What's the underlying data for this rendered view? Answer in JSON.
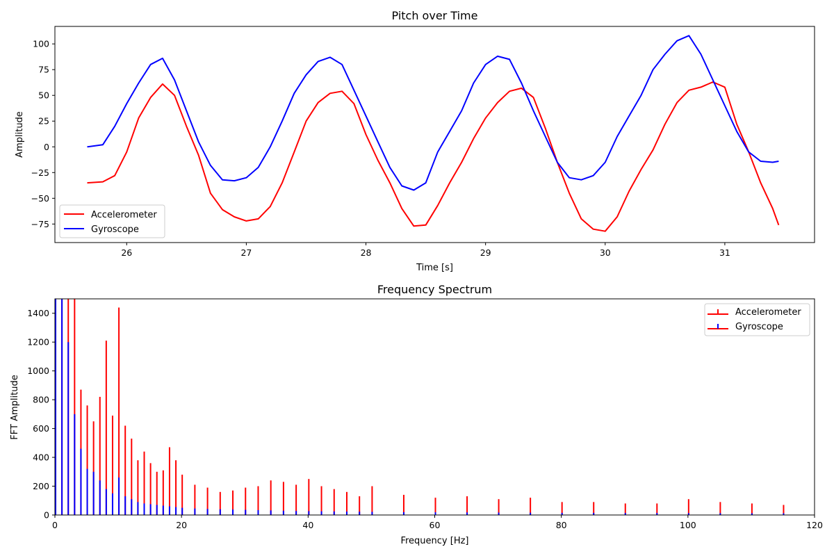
{
  "chart_data": [
    {
      "type": "line",
      "title": "Pitch over Time",
      "xlabel": "Time [s]",
      "ylabel": "Amplitude",
      "xlim": [
        25.4,
        31.75
      ],
      "ylim": [
        -93,
        117
      ],
      "xticks": [
        26,
        27,
        28,
        29,
        30,
        31
      ],
      "xtick_labels": [
        "26",
        "27",
        "28",
        "29",
        "30",
        "31"
      ],
      "yticks": [
        100,
        75,
        50,
        25,
        0,
        -25,
        -50,
        -75
      ],
      "ytick_labels": [
        "100",
        "75",
        "50",
        "25",
        "0",
        "−25",
        "−50",
        "−75"
      ],
      "legend_position": "lower-left",
      "grid": false,
      "series": [
        {
          "name": "Accelerometer",
          "color": "#ff0000",
          "x": [
            25.67,
            25.8,
            25.9,
            26.0,
            26.1,
            26.2,
            26.3,
            26.4,
            26.5,
            26.6,
            26.7,
            26.8,
            26.9,
            27.0,
            27.1,
            27.2,
            27.3,
            27.4,
            27.5,
            27.6,
            27.7,
            27.8,
            27.9,
            28.0,
            28.1,
            28.2,
            28.3,
            28.4,
            28.5,
            28.6,
            28.7,
            28.8,
            28.9,
            29.0,
            29.1,
            29.2,
            29.3,
            29.4,
            29.5,
            29.6,
            29.7,
            29.8,
            29.9,
            30.0,
            30.1,
            30.2,
            30.3,
            30.4,
            30.5,
            30.6,
            30.7,
            30.8,
            30.9,
            31.0,
            31.1,
            31.2,
            31.3,
            31.4,
            31.45
          ],
          "y": [
            -35,
            -34,
            -28,
            -5,
            28,
            48,
            61,
            50,
            20,
            -8,
            -45,
            -61,
            -68,
            -72,
            -70,
            -58,
            -35,
            -5,
            25,
            43,
            52,
            54,
            42,
            12,
            -13,
            -35,
            -60,
            -77,
            -76,
            -57,
            -35,
            -15,
            8,
            28,
            43,
            54,
            57,
            48,
            18,
            -15,
            -45,
            -70,
            -80,
            -82,
            -68,
            -43,
            -22,
            -3,
            22,
            43,
            55,
            58,
            63,
            58,
            22,
            -5,
            -35,
            -60,
            -76
          ]
        },
        {
          "name": "Gyroscope",
          "color": "#0000ff",
          "x": [
            25.67,
            25.8,
            25.9,
            26.0,
            26.1,
            26.2,
            26.3,
            26.4,
            26.5,
            26.6,
            26.7,
            26.8,
            26.9,
            27.0,
            27.1,
            27.2,
            27.3,
            27.4,
            27.5,
            27.6,
            27.7,
            27.8,
            27.9,
            28.0,
            28.1,
            28.2,
            28.3,
            28.4,
            28.5,
            28.6,
            28.7,
            28.8,
            28.9,
            29.0,
            29.1,
            29.2,
            29.3,
            29.4,
            29.5,
            29.6,
            29.7,
            29.8,
            29.9,
            30.0,
            30.1,
            30.2,
            30.3,
            30.4,
            30.5,
            30.6,
            30.7,
            30.8,
            30.9,
            31.0,
            31.1,
            31.2,
            31.3,
            31.4,
            31.45
          ],
          "y": [
            0,
            2,
            20,
            42,
            62,
            80,
            86,
            65,
            35,
            5,
            -18,
            -32,
            -33,
            -30,
            -20,
            0,
            25,
            52,
            70,
            83,
            87,
            80,
            55,
            30,
            5,
            -20,
            -38,
            -42,
            -35,
            -5,
            15,
            35,
            62,
            80,
            88,
            85,
            62,
            35,
            10,
            -15,
            -30,
            -32,
            -28,
            -15,
            10,
            30,
            50,
            75,
            90,
            103,
            108,
            90,
            65,
            40,
            15,
            -5,
            -14,
            -15,
            -14
          ]
        }
      ]
    },
    {
      "type": "bar",
      "title": "Frequency Spectrum",
      "xlabel": "Frequency [Hz]",
      "ylabel": "FFT Amplitude",
      "xlim": [
        0,
        120
      ],
      "ylim": [
        0,
        1500
      ],
      "xticks": [
        0,
        20,
        40,
        60,
        80,
        100,
        120
      ],
      "xtick_labels": [
        "0",
        "20",
        "40",
        "60",
        "80",
        "100",
        "120"
      ],
      "yticks": [
        0,
        200,
        400,
        600,
        800,
        1000,
        1200,
        1400
      ],
      "ytick_labels": [
        "0",
        "200",
        "400",
        "600",
        "800",
        "1000",
        "1200",
        "1400"
      ],
      "legend_position": "top-right",
      "grid": false,
      "series": [
        {
          "name": "Accelerometer",
          "color": "#ff0000",
          "x": [
            0,
            1,
            2,
            3,
            4,
            5,
            6,
            7,
            8,
            9,
            10,
            11,
            12,
            13,
            14,
            15,
            16,
            17,
            18,
            19,
            20,
            22,
            24,
            26,
            28,
            30,
            32,
            34,
            36,
            38,
            40,
            42,
            44,
            46,
            48,
            50,
            55,
            60,
            65,
            70,
            75,
            80,
            85,
            90,
            95,
            100,
            105,
            110,
            115,
            120
          ],
          "y": [
            1500,
            1500,
            1500,
            1500,
            870,
            760,
            650,
            820,
            1210,
            690,
            1440,
            620,
            530,
            380,
            440,
            360,
            300,
            310,
            470,
            380,
            280,
            210,
            190,
            160,
            170,
            190,
            200,
            240,
            230,
            210,
            250,
            200,
            180,
            160,
            130,
            200,
            140,
            120,
            130,
            110,
            120,
            90,
            90,
            80,
            80,
            110,
            90,
            80,
            70,
            90
          ]
        },
        {
          "name": "Gyroscope",
          "color": "#0000ff",
          "x": [
            0,
            1,
            2,
            3,
            4,
            5,
            6,
            7,
            8,
            9,
            10,
            11,
            12,
            13,
            14,
            15,
            16,
            17,
            18,
            19,
            20,
            22,
            24,
            26,
            28,
            30,
            32,
            34,
            36,
            38,
            40,
            42,
            44,
            46,
            48,
            50,
            55,
            60,
            65,
            70,
            75,
            80,
            85,
            90,
            95,
            100,
            105,
            110,
            115,
            120
          ],
          "y": [
            1500,
            1500,
            1200,
            700,
            460,
            320,
            300,
            240,
            180,
            150,
            260,
            130,
            110,
            90,
            80,
            75,
            70,
            65,
            60,
            55,
            50,
            45,
            42,
            40,
            38,
            36,
            34,
            32,
            30,
            28,
            27,
            26,
            25,
            24,
            23,
            22,
            20,
            19,
            18,
            17,
            16,
            15,
            15,
            14,
            14,
            13,
            13,
            12,
            12,
            12
          ]
        }
      ]
    }
  ]
}
